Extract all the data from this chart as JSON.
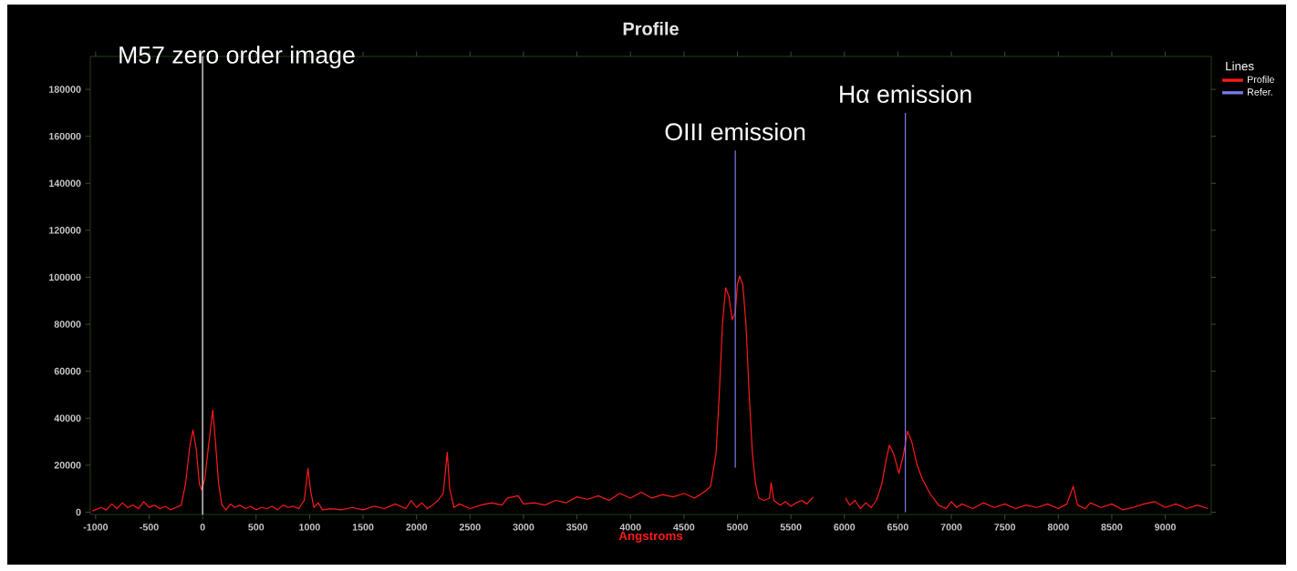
{
  "chart_data": {
    "type": "line",
    "title": "Profile",
    "xlabel": "Angstroms",
    "legend_title": "Lines",
    "legend": "right",
    "xlim": [
      -1050,
      9430
    ],
    "ylim": [
      -1000,
      194000
    ],
    "xticks": [
      -1000,
      -500,
      0,
      500,
      1000,
      1500,
      2000,
      2500,
      3000,
      3500,
      4000,
      4500,
      5000,
      5500,
      6000,
      6500,
      7000,
      7500,
      8000,
      8500,
      9000
    ],
    "yticks": [
      0,
      20000,
      40000,
      60000,
      80000,
      100000,
      120000,
      140000,
      160000,
      180000
    ],
    "series": [
      {
        "name": "Profile",
        "color": "#ff1a1a",
        "x": [
          -1030,
          -950,
          -900,
          -850,
          -800,
          -750,
          -700,
          -650,
          -600,
          -550,
          -500,
          -450,
          -400,
          -350,
          -300,
          -250,
          -200,
          -160,
          -120,
          -90,
          -60,
          -30,
          -10,
          20,
          60,
          95,
          120,
          150,
          180,
          220,
          260,
          300,
          350,
          400,
          450,
          500,
          550,
          600,
          650,
          700,
          750,
          800,
          850,
          900,
          950,
          985,
          1010,
          1040,
          1080,
          1120,
          1200,
          1300,
          1400,
          1500,
          1600,
          1700,
          1800,
          1900,
          1950,
          2000,
          2050,
          2100,
          2150,
          2200,
          2250,
          2287,
          2310,
          2350,
          2400,
          2500,
          2600,
          2700,
          2800,
          2850,
          2950,
          3000,
          3100,
          3200,
          3300,
          3400,
          3500,
          3600,
          3700,
          3800,
          3900,
          4000,
          4100,
          4200,
          4300,
          4400,
          4500,
          4600,
          4700,
          4750,
          4800,
          4830,
          4860,
          4890,
          4920,
          4950,
          4980,
          5000,
          5020,
          5050,
          5080,
          5110,
          5140,
          5170,
          5200,
          5250,
          5300,
          5315,
          5340,
          5400,
          5450,
          5500,
          5550,
          5600,
          5650,
          5710,
          5860,
          6010,
          6050,
          6100,
          6150,
          6200,
          6250,
          6300,
          6350,
          6390,
          6420,
          6460,
          6510,
          6550,
          6590,
          6630,
          6680,
          6730,
          6800,
          6880,
          6950,
          7000,
          7050,
          7100,
          7200,
          7300,
          7400,
          7500,
          7600,
          7700,
          7800,
          7900,
          8000,
          8080,
          8140,
          8180,
          8250,
          8300,
          8400,
          8500,
          8600,
          8700,
          8800,
          8900,
          9000,
          9100,
          9200,
          9300,
          9400
        ],
        "values": [
          500,
          2000,
          1000,
          3500,
          1500,
          4000,
          2000,
          3000,
          1500,
          4500,
          2000,
          3000,
          1500,
          2500,
          1000,
          2000,
          3000,
          12000,
          28000,
          35000,
          27000,
          12000,
          9500,
          14000,
          30000,
          43500,
          30000,
          12000,
          3000,
          1000,
          3500,
          2000,
          3000,
          1500,
          2500,
          1000,
          2000,
          1500,
          2500,
          1000,
          3000,
          2000,
          2500,
          1500,
          5000,
          18500,
          9000,
          2000,
          4000,
          1000,
          1500,
          1000,
          2000,
          1000,
          2500,
          1500,
          3500,
          1500,
          5000,
          2000,
          4000,
          1500,
          3000,
          5000,
          8000,
          25500,
          10000,
          2000,
          3500,
          1500,
          3000,
          4000,
          3000,
          6000,
          7000,
          3500,
          4000,
          3000,
          5000,
          4000,
          6500,
          5500,
          7000,
          5000,
          8000,
          6000,
          8500,
          6000,
          7500,
          6500,
          8000,
          6000,
          9000,
          11000,
          25000,
          50000,
          80000,
          95500,
          92000,
          82000,
          85000,
          97000,
          100500,
          97000,
          80000,
          50000,
          25000,
          12000,
          6000,
          5000,
          6000,
          12500,
          5000,
          3000,
          4500,
          2500,
          4000,
          5000,
          3500,
          6500,
          null,
          6000,
          3000,
          5000,
          1500,
          4000,
          2000,
          5000,
          12000,
          22000,
          28500,
          25000,
          16500,
          24000,
          34500,
          30000,
          20000,
          14000,
          8000,
          3000,
          1500,
          4500,
          2000,
          3500,
          1500,
          4000,
          2000,
          3500,
          1500,
          3000,
          2000,
          3500,
          1500,
          3500,
          11000,
          3000,
          1500,
          4000,
          2000,
          3500,
          1000,
          2000,
          3500,
          4500,
          2000,
          3500,
          1500,
          3000,
          1500
        ]
      },
      {
        "name": "Refer.",
        "color": "#7b7bf0",
        "x": [
          4980,
          4980,
          null,
          6570,
          6570
        ],
        "values": [
          19000,
          154000,
          null,
          0,
          170000
        ]
      }
    ],
    "ref_lines": [
      {
        "axis": "x",
        "value": 0,
        "label": "M57 zero order image",
        "color": "#e0e0e0"
      }
    ],
    "annotations": [
      {
        "text": "OIII emission",
        "x": 4980,
        "y": 154000
      },
      {
        "text": "Hα emission",
        "x": 6570,
        "y": 170000
      }
    ]
  }
}
